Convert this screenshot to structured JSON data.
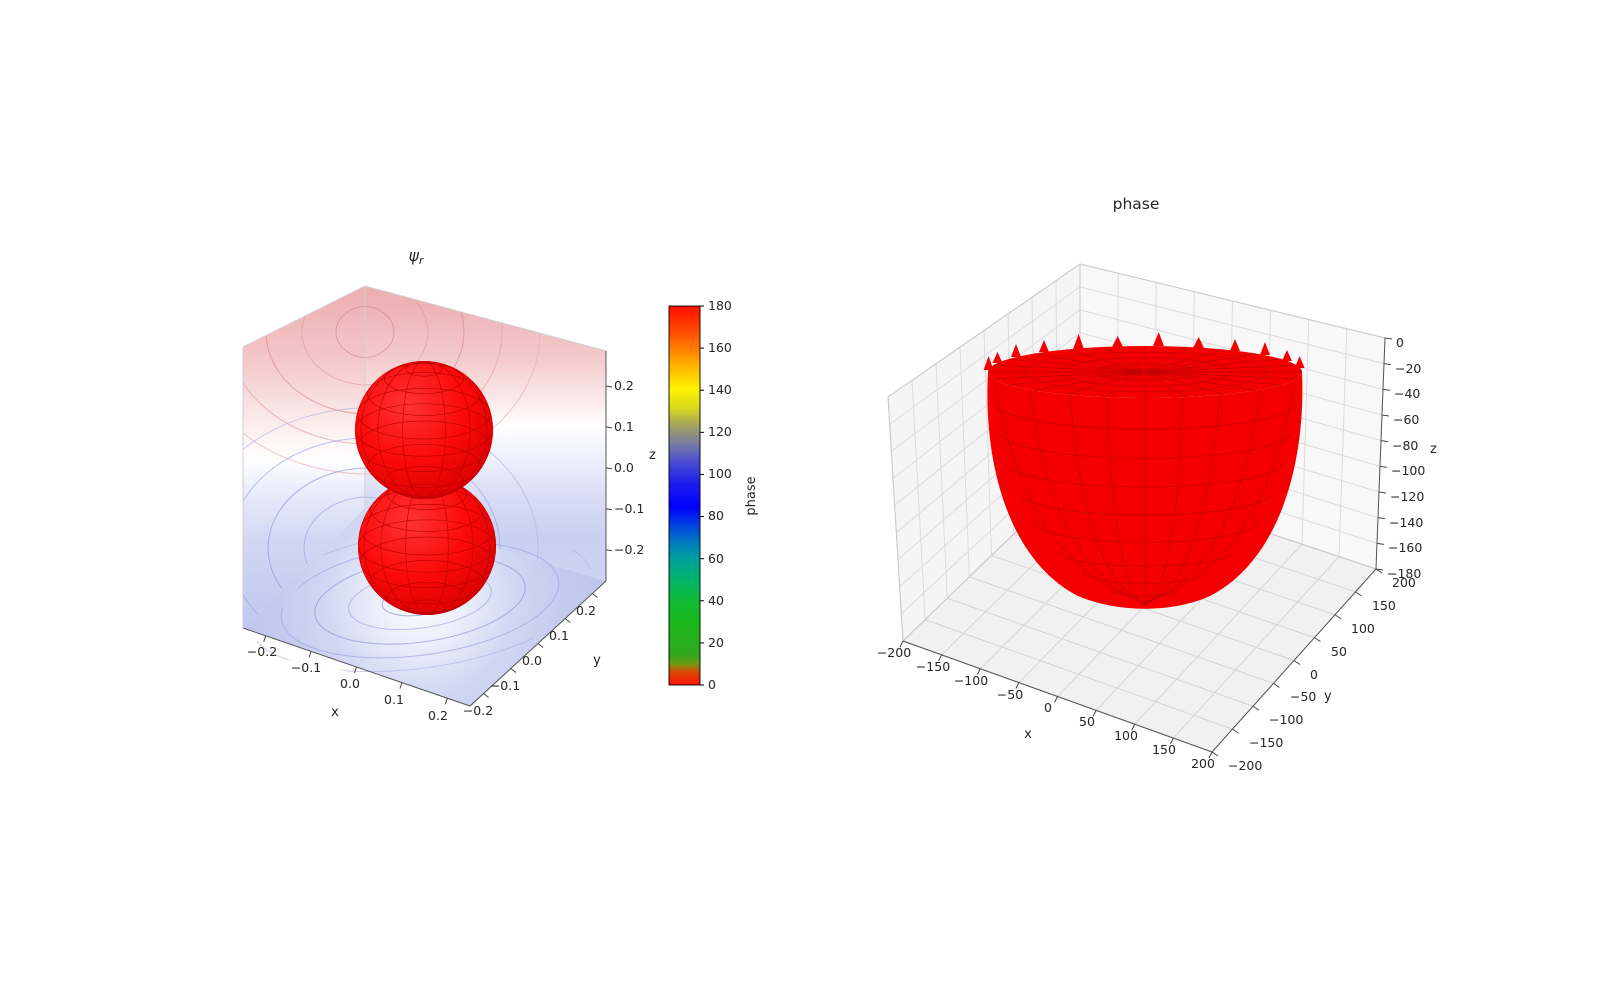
{
  "colors": {
    "background": "#ffffff",
    "surface_red": "#f40000",
    "mesh_red": "#bb0000",
    "pane_gray": "#f5f5f5",
    "grid_gray": "#dcdcdc",
    "tick_text": "#262626",
    "contour_positive_red": "#dc8f93",
    "contour_negative_blue": "#8f99dc"
  },
  "left_plot": {
    "title": {
      "symbol": "ψ",
      "subscript": "r"
    },
    "xlabel": "x",
    "ylabel": "y",
    "zlabel": "z",
    "x_tick_labels": [
      "−0.2",
      "−0.1",
      "0.0",
      "0.1",
      "0.2"
    ],
    "y_tick_labels": [
      "0.2",
      "0.1",
      "0.0",
      "−0.1",
      "−0.2"
    ],
    "z_tick_labels": [
      "0.2",
      "0.1",
      "0.0",
      "−0.1",
      "−0.2"
    ],
    "colorbar": {
      "label": "phase",
      "tick_labels": [
        "180",
        "160",
        "140",
        "120",
        "100",
        "80",
        "60",
        "40",
        "20",
        "0"
      ]
    }
  },
  "right_plot": {
    "title": "phase",
    "xlabel": "x",
    "ylabel": "y",
    "zlabel": "z",
    "x_tick_labels": [
      "−200",
      "−150",
      "−100",
      "−50",
      "0",
      "50",
      "100",
      "150",
      "200"
    ],
    "y_tick_labels": [
      "200",
      "150",
      "100",
      "50",
      "0",
      "−50",
      "−100",
      "−150",
      "−200"
    ],
    "z_tick_labels": [
      "0",
      "−20",
      "−40",
      "−60",
      "−80",
      "−100",
      "−120",
      "−140",
      "−160",
      "−180"
    ]
  },
  "chart_data": [
    {
      "type": "surface",
      "title": "ψ_r",
      "xlabel": "x",
      "ylabel": "y",
      "zlabel": "z",
      "xlim": [
        -0.25,
        0.25
      ],
      "ylim": [
        -0.25,
        0.25
      ],
      "zlim": [
        -0.25,
        0.25
      ],
      "xticks": [
        -0.2,
        -0.1,
        0.0,
        0.1,
        0.2
      ],
      "yticks": [
        -0.2,
        -0.1,
        0.0,
        0.1,
        0.2
      ],
      "zticks": [
        -0.2,
        -0.1,
        0.0,
        0.1,
        0.2
      ],
      "surface": {
        "kind": "two-lobe isosurface (p-orbital style dumbbell of two spheres stacked along z)",
        "color": "#ff0000",
        "lobes": [
          {
            "center": [
              0,
              0,
              0.11
            ],
            "radius": 0.11
          },
          {
            "center": [
              0,
              0,
              -0.11
            ],
            "radius": 0.11
          }
        ]
      },
      "projections": {
        "walls": "filled contour projections of the wavefunction on both rear walls: red (positive) bands in the upper half, blue (negative) bands in the lower half",
        "floor": "concentric blue contour rings centered near the origin with a white core"
      },
      "colorbar": {
        "label": "phase",
        "min": 0,
        "max": 180,
        "ticks": [
          0,
          20,
          40,
          60,
          80,
          100,
          120,
          140,
          160,
          180
        ],
        "colors_top_to_bottom": [
          "red",
          "orange",
          "yellow",
          "olive",
          "slate",
          "blue",
          "bright blue",
          "teal",
          "green",
          "green",
          "red"
        ]
      },
      "grid": true,
      "legend": false
    },
    {
      "type": "surface",
      "title": "phase",
      "xlabel": "x",
      "ylabel": "y",
      "zlabel": "z",
      "xlim": [
        -200,
        200
      ],
      "ylim": [
        -200,
        200
      ],
      "zlim": [
        -180,
        0
      ],
      "xticks": [
        -200,
        -150,
        -100,
        -50,
        0,
        50,
        100,
        150,
        200
      ],
      "yticks": [
        -200,
        -150,
        -100,
        -50,
        0,
        50,
        100,
        150,
        200
      ],
      "zticks": [
        0,
        -20,
        -40,
        -60,
        -80,
        -100,
        -120,
        -140,
        -160,
        -180
      ],
      "surface": {
        "kind": "deep bowl / paraboloid cup opening upward with a jagged spiked rim",
        "color": "#ff0000",
        "rim_z": 0,
        "rim_radius": 160,
        "bottom": [
          0,
          0,
          -170
        ]
      },
      "grid": true,
      "legend": false
    }
  ]
}
